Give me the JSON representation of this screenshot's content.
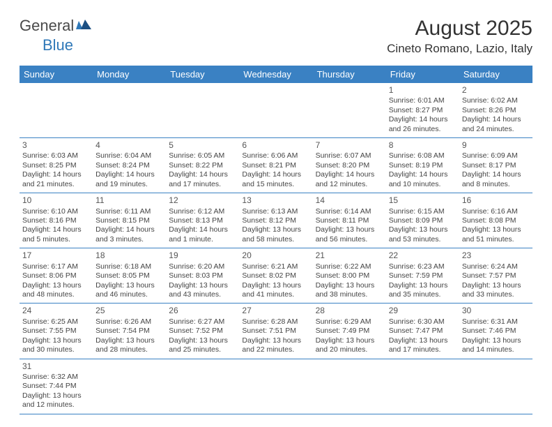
{
  "logo": {
    "text1": "General",
    "text2": "Blue"
  },
  "title": "August 2025",
  "location": "Cineto Romano, Lazio, Italy",
  "colors": {
    "header_bg": "#3a81c3",
    "header_text": "#ffffff",
    "border": "#3a81c3",
    "logo_accent": "#2f78b8",
    "body_text": "#444444"
  },
  "weekdays": [
    "Sunday",
    "Monday",
    "Tuesday",
    "Wednesday",
    "Thursday",
    "Friday",
    "Saturday"
  ],
  "weeks": [
    [
      null,
      null,
      null,
      null,
      null,
      {
        "d": "1",
        "sr": "Sunrise: 6:01 AM",
        "ss": "Sunset: 8:27 PM",
        "dl": "Daylight: 14 hours and 26 minutes."
      },
      {
        "d": "2",
        "sr": "Sunrise: 6:02 AM",
        "ss": "Sunset: 8:26 PM",
        "dl": "Daylight: 14 hours and 24 minutes."
      }
    ],
    [
      {
        "d": "3",
        "sr": "Sunrise: 6:03 AM",
        "ss": "Sunset: 8:25 PM",
        "dl": "Daylight: 14 hours and 21 minutes."
      },
      {
        "d": "4",
        "sr": "Sunrise: 6:04 AM",
        "ss": "Sunset: 8:24 PM",
        "dl": "Daylight: 14 hours and 19 minutes."
      },
      {
        "d": "5",
        "sr": "Sunrise: 6:05 AM",
        "ss": "Sunset: 8:22 PM",
        "dl": "Daylight: 14 hours and 17 minutes."
      },
      {
        "d": "6",
        "sr": "Sunrise: 6:06 AM",
        "ss": "Sunset: 8:21 PM",
        "dl": "Daylight: 14 hours and 15 minutes."
      },
      {
        "d": "7",
        "sr": "Sunrise: 6:07 AM",
        "ss": "Sunset: 8:20 PM",
        "dl": "Daylight: 14 hours and 12 minutes."
      },
      {
        "d": "8",
        "sr": "Sunrise: 6:08 AM",
        "ss": "Sunset: 8:19 PM",
        "dl": "Daylight: 14 hours and 10 minutes."
      },
      {
        "d": "9",
        "sr": "Sunrise: 6:09 AM",
        "ss": "Sunset: 8:17 PM",
        "dl": "Daylight: 14 hours and 8 minutes."
      }
    ],
    [
      {
        "d": "10",
        "sr": "Sunrise: 6:10 AM",
        "ss": "Sunset: 8:16 PM",
        "dl": "Daylight: 14 hours and 5 minutes."
      },
      {
        "d": "11",
        "sr": "Sunrise: 6:11 AM",
        "ss": "Sunset: 8:15 PM",
        "dl": "Daylight: 14 hours and 3 minutes."
      },
      {
        "d": "12",
        "sr": "Sunrise: 6:12 AM",
        "ss": "Sunset: 8:13 PM",
        "dl": "Daylight: 14 hours and 1 minute."
      },
      {
        "d": "13",
        "sr": "Sunrise: 6:13 AM",
        "ss": "Sunset: 8:12 PM",
        "dl": "Daylight: 13 hours and 58 minutes."
      },
      {
        "d": "14",
        "sr": "Sunrise: 6:14 AM",
        "ss": "Sunset: 8:11 PM",
        "dl": "Daylight: 13 hours and 56 minutes."
      },
      {
        "d": "15",
        "sr": "Sunrise: 6:15 AM",
        "ss": "Sunset: 8:09 PM",
        "dl": "Daylight: 13 hours and 53 minutes."
      },
      {
        "d": "16",
        "sr": "Sunrise: 6:16 AM",
        "ss": "Sunset: 8:08 PM",
        "dl": "Daylight: 13 hours and 51 minutes."
      }
    ],
    [
      {
        "d": "17",
        "sr": "Sunrise: 6:17 AM",
        "ss": "Sunset: 8:06 PM",
        "dl": "Daylight: 13 hours and 48 minutes."
      },
      {
        "d": "18",
        "sr": "Sunrise: 6:18 AM",
        "ss": "Sunset: 8:05 PM",
        "dl": "Daylight: 13 hours and 46 minutes."
      },
      {
        "d": "19",
        "sr": "Sunrise: 6:20 AM",
        "ss": "Sunset: 8:03 PM",
        "dl": "Daylight: 13 hours and 43 minutes."
      },
      {
        "d": "20",
        "sr": "Sunrise: 6:21 AM",
        "ss": "Sunset: 8:02 PM",
        "dl": "Daylight: 13 hours and 41 minutes."
      },
      {
        "d": "21",
        "sr": "Sunrise: 6:22 AM",
        "ss": "Sunset: 8:00 PM",
        "dl": "Daylight: 13 hours and 38 minutes."
      },
      {
        "d": "22",
        "sr": "Sunrise: 6:23 AM",
        "ss": "Sunset: 7:59 PM",
        "dl": "Daylight: 13 hours and 35 minutes."
      },
      {
        "d": "23",
        "sr": "Sunrise: 6:24 AM",
        "ss": "Sunset: 7:57 PM",
        "dl": "Daylight: 13 hours and 33 minutes."
      }
    ],
    [
      {
        "d": "24",
        "sr": "Sunrise: 6:25 AM",
        "ss": "Sunset: 7:55 PM",
        "dl": "Daylight: 13 hours and 30 minutes."
      },
      {
        "d": "25",
        "sr": "Sunrise: 6:26 AM",
        "ss": "Sunset: 7:54 PM",
        "dl": "Daylight: 13 hours and 28 minutes."
      },
      {
        "d": "26",
        "sr": "Sunrise: 6:27 AM",
        "ss": "Sunset: 7:52 PM",
        "dl": "Daylight: 13 hours and 25 minutes."
      },
      {
        "d": "27",
        "sr": "Sunrise: 6:28 AM",
        "ss": "Sunset: 7:51 PM",
        "dl": "Daylight: 13 hours and 22 minutes."
      },
      {
        "d": "28",
        "sr": "Sunrise: 6:29 AM",
        "ss": "Sunset: 7:49 PM",
        "dl": "Daylight: 13 hours and 20 minutes."
      },
      {
        "d": "29",
        "sr": "Sunrise: 6:30 AM",
        "ss": "Sunset: 7:47 PM",
        "dl": "Daylight: 13 hours and 17 minutes."
      },
      {
        "d": "30",
        "sr": "Sunrise: 6:31 AM",
        "ss": "Sunset: 7:46 PM",
        "dl": "Daylight: 13 hours and 14 minutes."
      }
    ],
    [
      {
        "d": "31",
        "sr": "Sunrise: 6:32 AM",
        "ss": "Sunset: 7:44 PM",
        "dl": "Daylight: 13 hours and 12 minutes."
      },
      null,
      null,
      null,
      null,
      null,
      null
    ]
  ]
}
